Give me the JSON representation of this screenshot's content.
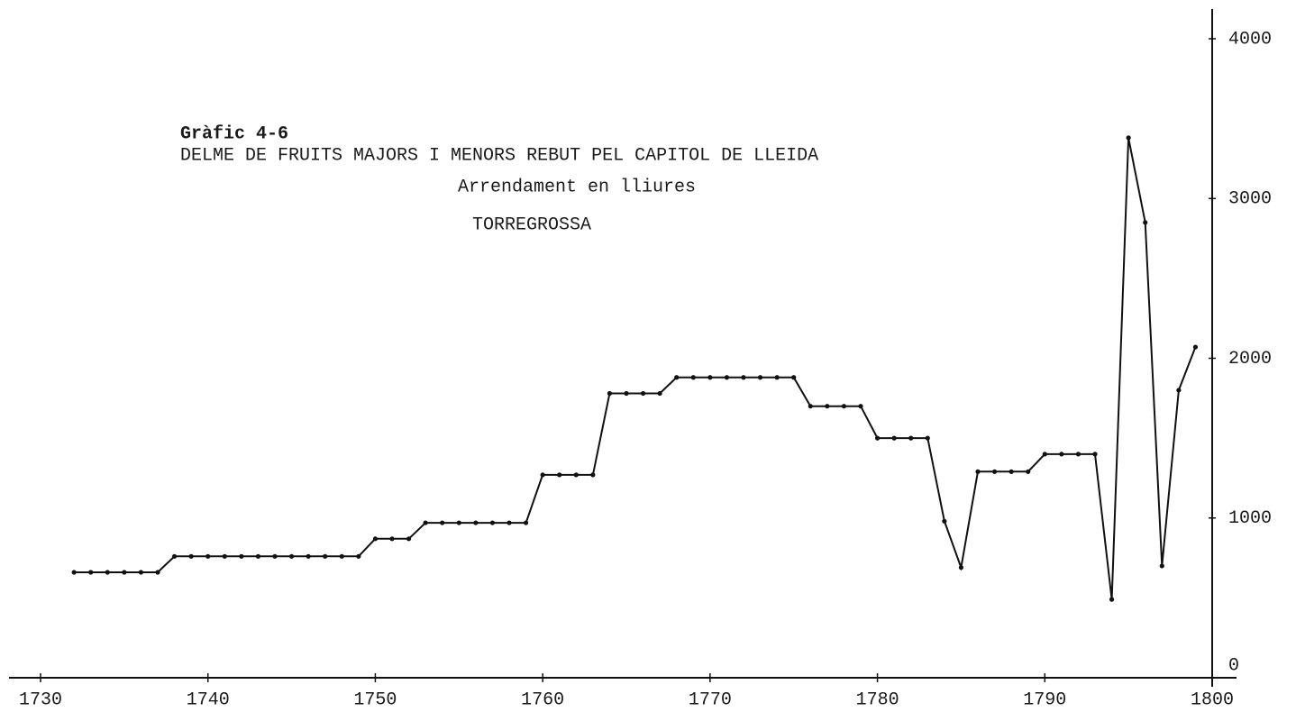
{
  "chart_data": {
    "type": "line",
    "title": "Gràfic 4-6",
    "subtitle": [
      "DELME DE FRUITS MAJORS I MENORS REBUT PEL CAPITOL DE LLEIDA",
      "Arrendament en lliures",
      "TORREGROSSA"
    ],
    "x": [
      1732,
      1733,
      1734,
      1735,
      1736,
      1737,
      1738,
      1739,
      1740,
      1741,
      1742,
      1743,
      1744,
      1745,
      1746,
      1747,
      1748,
      1749,
      1750,
      1751,
      1752,
      1753,
      1754,
      1755,
      1756,
      1757,
      1758,
      1759,
      1760,
      1761,
      1762,
      1763,
      1764,
      1765,
      1766,
      1767,
      1768,
      1769,
      1770,
      1771,
      1772,
      1773,
      1774,
      1775,
      1776,
      1777,
      1778,
      1779,
      1780,
      1781,
      1782,
      1783,
      1784,
      1785,
      1786,
      1787,
      1788,
      1789,
      1790,
      1791,
      1792,
      1793,
      1794,
      1795,
      1796,
      1797,
      1798,
      1799
    ],
    "series": [
      {
        "color": "#111111",
        "values": [
          660,
          660,
          660,
          660,
          660,
          660,
          760,
          760,
          760,
          760,
          760,
          760,
          760,
          760,
          760,
          760,
          760,
          760,
          870,
          870,
          870,
          970,
          970,
          970,
          970,
          970,
          970,
          970,
          1270,
          1270,
          1270,
          1270,
          1780,
          1780,
          1780,
          1780,
          1880,
          1880,
          1880,
          1880,
          1880,
          1880,
          1880,
          1880,
          1700,
          1700,
          1700,
          1700,
          1500,
          1500,
          1500,
          1500,
          980,
          690,
          1290,
          1290,
          1290,
          1290,
          1400,
          1400,
          1400,
          1400,
          490,
          3380,
          2850,
          700,
          1800,
          2070
        ]
      }
    ],
    "xlim": [
      1730,
      1800
    ],
    "ylim": [
      0,
      4000
    ],
    "xticks": [
      1730,
      1740,
      1750,
      1760,
      1770,
      1780,
      1790,
      1800
    ],
    "yticks": [
      0,
      1000,
      2000,
      3000,
      4000
    ],
    "grid": false
  }
}
